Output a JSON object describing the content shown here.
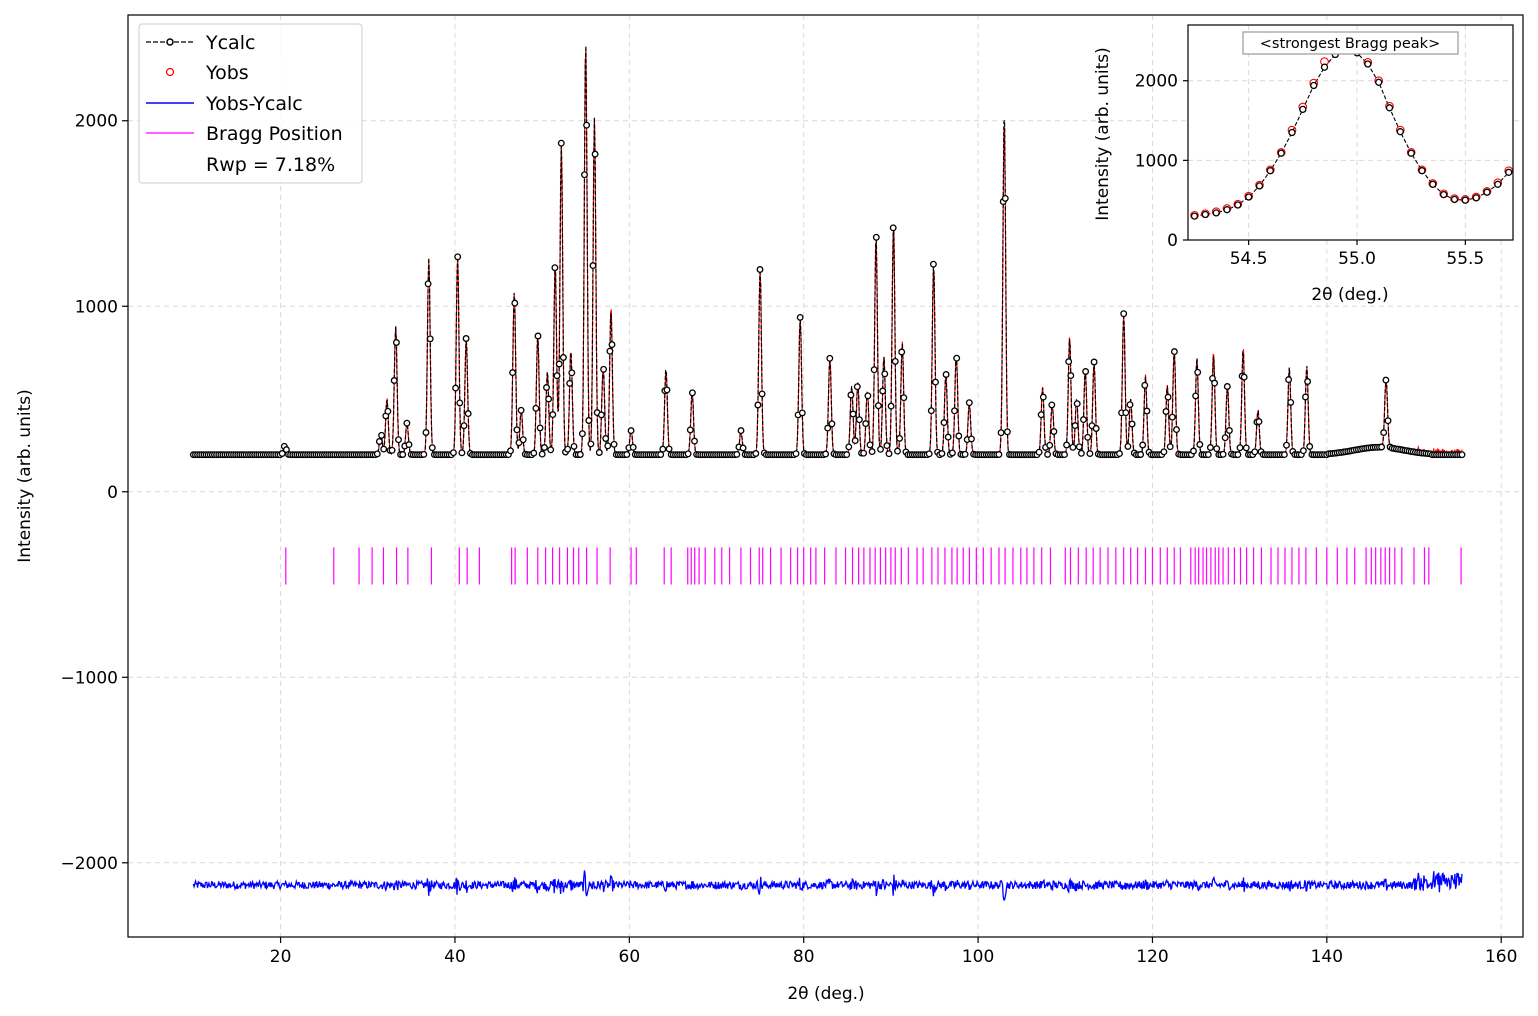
{
  "chart_data": [
    {
      "type": "line",
      "xlabel": "2θ (deg.)",
      "ylabel": "Intensity (arb. units)",
      "xlim": [
        2.5,
        162.5
      ],
      "ylim": [
        -2400,
        2570
      ],
      "xticks": [
        20,
        40,
        60,
        80,
        100,
        120,
        140,
        160
      ],
      "yticks": [
        -2000,
        -1000,
        0,
        1000,
        2000
      ],
      "ytick_labels": [
        "−2000",
        "−1000",
        "0",
        "1000",
        "2000"
      ],
      "grid": true,
      "legend_position": "top-left",
      "legend": [
        "Ycalc",
        "Yobs",
        "Yobs-Ycalc",
        "Bragg Position",
        "Rwp = 7.18%"
      ],
      "x_range": [
        10,
        155.5
      ],
      "background": 200,
      "peaks": [
        {
          "x": 20.5,
          "h": 50
        },
        {
          "x": 31.5,
          "h": 120
        },
        {
          "x": 32.2,
          "h": 300
        },
        {
          "x": 33.2,
          "h": 690
        },
        {
          "x": 34.5,
          "h": 170
        },
        {
          "x": 37.0,
          "h": 1060
        },
        {
          "x": 40.3,
          "h": 1070
        },
        {
          "x": 41.3,
          "h": 630
        },
        {
          "x": 46.8,
          "h": 880
        },
        {
          "x": 47.6,
          "h": 240
        },
        {
          "x": 49.5,
          "h": 650
        },
        {
          "x": 50.6,
          "h": 450
        },
        {
          "x": 51.5,
          "h": 1030
        },
        {
          "x": 52.2,
          "h": 1680
        },
        {
          "x": 53.3,
          "h": 560
        },
        {
          "x": 55.0,
          "h": 2230
        },
        {
          "x": 56.0,
          "h": 1820
        },
        {
          "x": 57.0,
          "h": 480
        },
        {
          "x": 57.9,
          "h": 780
        },
        {
          "x": 60.2,
          "h": 130
        },
        {
          "x": 64.2,
          "h": 470
        },
        {
          "x": 67.2,
          "h": 340
        },
        {
          "x": 72.8,
          "h": 130
        },
        {
          "x": 75.0,
          "h": 1000
        },
        {
          "x": 79.6,
          "h": 740
        },
        {
          "x": 83.0,
          "h": 520
        },
        {
          "x": 85.5,
          "h": 370
        },
        {
          "x": 86.2,
          "h": 390
        },
        {
          "x": 87.3,
          "h": 340
        },
        {
          "x": 88.3,
          "h": 1190
        },
        {
          "x": 89.2,
          "h": 530
        },
        {
          "x": 90.3,
          "h": 1250
        },
        {
          "x": 91.3,
          "h": 600
        },
        {
          "x": 94.9,
          "h": 1040
        },
        {
          "x": 96.3,
          "h": 440
        },
        {
          "x": 97.5,
          "h": 540
        },
        {
          "x": 99.0,
          "h": 280
        },
        {
          "x": 103.0,
          "h": 1860
        },
        {
          "x": 107.4,
          "h": 360
        },
        {
          "x": 108.5,
          "h": 280
        },
        {
          "x": 110.5,
          "h": 630
        },
        {
          "x": 111.3,
          "h": 300
        },
        {
          "x": 112.3,
          "h": 460
        },
        {
          "x": 113.3,
          "h": 500
        },
        {
          "x": 116.7,
          "h": 760
        },
        {
          "x": 117.5,
          "h": 300
        },
        {
          "x": 119.2,
          "h": 420
        },
        {
          "x": 121.7,
          "h": 370
        },
        {
          "x": 122.5,
          "h": 560
        },
        {
          "x": 125.1,
          "h": 520
        },
        {
          "x": 127.0,
          "h": 540
        },
        {
          "x": 128.6,
          "h": 370
        },
        {
          "x": 130.4,
          "h": 570
        },
        {
          "x": 132.1,
          "h": 240
        },
        {
          "x": 135.7,
          "h": 470
        },
        {
          "x": 137.7,
          "h": 480
        },
        {
          "x": 146.8,
          "h": 370
        }
      ],
      "residual_offset": -2120,
      "bragg_row": {
        "y_top": -300,
        "y_bottom": -500
      },
      "bragg_positions": [
        20.6,
        26.1,
        29.0,
        30.5,
        31.8,
        33.3,
        34.6,
        37.3,
        40.5,
        41.4,
        42.8,
        46.5,
        46.9,
        48.3,
        49.5,
        50.4,
        51.2,
        52.0,
        52.9,
        53.6,
        54.2,
        55.1,
        56.3,
        57.8,
        60.2,
        60.8,
        64.0,
        64.8,
        66.7,
        67.1,
        67.5,
        68.0,
        68.7,
        69.8,
        70.6,
        71.5,
        72.8,
        73.9,
        74.9,
        75.3,
        76.2,
        77.4,
        78.5,
        79.3,
        80.0,
        80.8,
        81.4,
        82.4,
        83.7,
        84.8,
        85.6,
        86.3,
        86.9,
        87.6,
        88.2,
        88.8,
        89.4,
        90.0,
        90.5,
        91.2,
        92.0,
        93.0,
        93.7,
        94.7,
        95.4,
        96.2,
        97.0,
        97.6,
        98.3,
        99.0,
        99.8,
        100.6,
        101.5,
        102.4,
        103.1,
        104.0,
        104.9,
        105.6,
        106.4,
        107.3,
        108.3,
        110.0,
        110.6,
        111.5,
        112.4,
        113.2,
        114.0,
        114.9,
        115.8,
        116.7,
        117.5,
        118.3,
        119.2,
        120.0,
        120.9,
        121.7,
        122.5,
        123.2,
        124.4,
        124.9,
        125.3,
        125.8,
        126.2,
        126.7,
        127.2,
        127.6,
        128.1,
        128.7,
        129.4,
        130.1,
        130.8,
        131.6,
        132.5,
        133.6,
        134.4,
        135.2,
        136.0,
        136.8,
        137.6,
        138.8,
        140.0,
        141.2,
        142.3,
        143.2,
        144.5,
        145.1,
        145.6,
        146.2,
        146.7,
        147.2,
        147.8,
        148.6,
        150.0,
        151.2,
        151.7,
        155.4
      ]
    },
    {
      "type": "line",
      "title": "<strongest Bragg peak>",
      "xlabel": "2θ (deg.)",
      "ylabel": "Intensity (arb. units)",
      "xlim": [
        54.22,
        55.72
      ],
      "ylim": [
        0,
        2700
      ],
      "xticks": [
        54.5,
        55.0,
        55.5
      ],
      "xtick_labels": [
        "54.5",
        "55.0",
        "55.5"
      ],
      "yticks": [
        0,
        1000,
        2000
      ],
      "grid": true,
      "x": [
        54.25,
        54.3,
        54.35,
        54.4,
        54.45,
        54.5,
        54.55,
        54.6,
        54.65,
        54.7,
        54.75,
        54.8,
        54.85,
        54.9,
        54.95,
        55.0,
        55.05,
        55.1,
        55.15,
        55.2,
        55.25,
        55.3,
        55.35,
        55.4,
        55.45,
        55.5,
        55.55,
        55.6,
        55.65,
        55.7
      ],
      "series": [
        {
          "name": "Ycalc",
          "values": [
            300,
            320,
            340,
            380,
            440,
            540,
            680,
            870,
            1090,
            1350,
            1640,
            1940,
            2170,
            2330,
            2380,
            2350,
            2210,
            1980,
            1660,
            1360,
            1090,
            870,
            700,
            570,
            510,
            500,
            530,
            600,
            700,
            850
          ]
        },
        {
          "name": "Yobs",
          "values": [
            310,
            330,
            355,
            395,
            450,
            550,
            690,
            880,
            1100,
            1380,
            1670,
            1970,
            2240,
            2400,
            2420,
            2390,
            2230,
            2000,
            1680,
            1380,
            1100,
            880,
            710,
            580,
            520,
            510,
            540,
            610,
            720,
            870
          ]
        }
      ]
    }
  ],
  "colors": {
    "ycalc": "#000000",
    "yobs": "#ff0000",
    "diff": "#0000ff",
    "bragg": "#ff00ff",
    "grid": "#d9d9d9"
  }
}
